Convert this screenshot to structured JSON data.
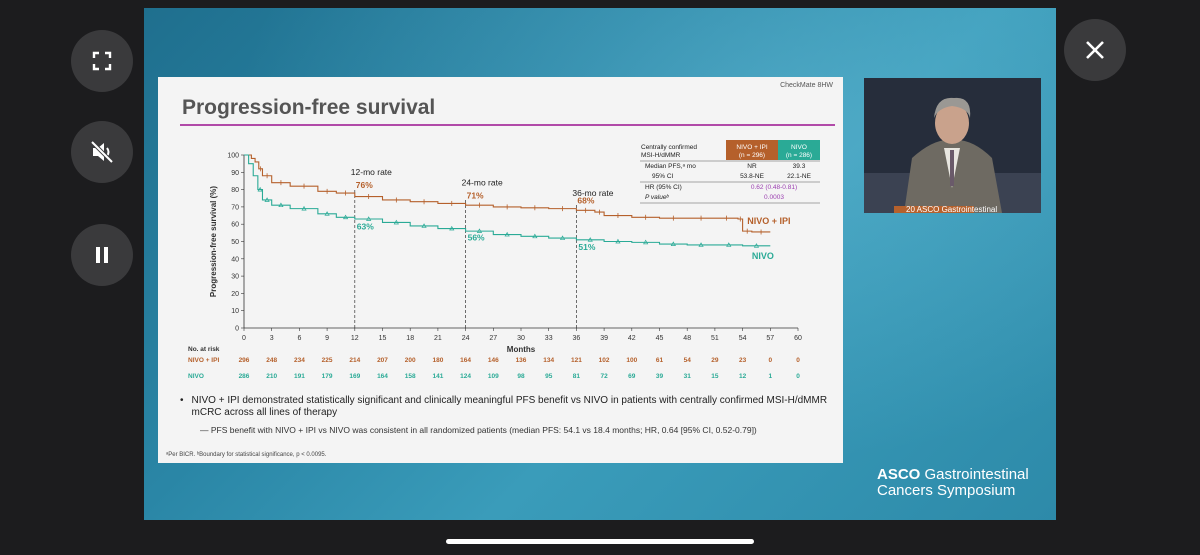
{
  "controls": {
    "fullscreen": "fullscreen-icon",
    "mute": "muted-speaker-icon",
    "pause": "pause-icon",
    "close": "close-icon"
  },
  "slide": {
    "tag": "CheckMate 8HW",
    "title": "Progression-free survival",
    "stats_table": {
      "row_header": "Centrally confirmed MSI-H/dMMR",
      "row_header_line1": "Centrally confirmed",
      "row_header_line2": "MSI-H/dMMR",
      "col1_line1": "NIVO + IPI",
      "col1_line2": "(n = 296)",
      "col2_line1": "NIVO",
      "col2_line2": "(n = 286)",
      "r1_label": "Median PFS,ᵃ mo",
      "r1_c1": "NR",
      "r1_c2": "39.3",
      "r2_label": "95% CI",
      "r2_c1": "53.8-NE",
      "r2_c2": "22.1-NE",
      "r3_label": "HR (95% CI)",
      "r3_value": "0.62 (0.48-0.81)",
      "r4_label": "P valueᵇ",
      "r4_value": "0.0003"
    },
    "bullet1": "NIVO + IPI demonstrated statistically significant and clinically meaningful PFS benefit vs NIVO in patients with centrally confirmed MSI-H/dMMR mCRC across all lines of therapy",
    "bullet2": "— PFS benefit with NIVO + IPI vs NIVO was consistent in all randomized patients (median PFS: 54.1 vs 18.4 months; HR, 0.64 [95% CI, 0.52-0.79])",
    "footnote": "ᵃPer BICR. ᵇBoundary for statistical significance, p < 0.0095."
  },
  "branding": {
    "line1_bold": "ASCO",
    "line1_rest": " Gastrointestinal",
    "line2": "Cancers Symposium",
    "podium_text": "20 ASCO Gastrointestinal"
  },
  "colors": {
    "nivo_ipi": "#b5602b",
    "nivo": "#2aaa96",
    "title_rule": "#b14aa8",
    "hr_text": "#9b3fb0"
  },
  "chart_data": {
    "type": "line",
    "ylabel": "Progression-free survival (%)",
    "xlabel": "Months",
    "xlim": [
      0,
      60
    ],
    "ylim": [
      0,
      100
    ],
    "x_ticks": [
      0,
      3,
      6,
      9,
      12,
      15,
      18,
      21,
      24,
      27,
      30,
      33,
      36,
      39,
      42,
      45,
      48,
      51,
      54,
      57,
      60
    ],
    "y_ticks": [
      0,
      10,
      20,
      30,
      40,
      50,
      60,
      70,
      80,
      90,
      100
    ],
    "landmarks": [
      {
        "x": 12,
        "label": "12-mo rate",
        "nivo_ipi": "76%",
        "nivo": "63%"
      },
      {
        "x": 24,
        "label": "24-mo rate",
        "nivo_ipi": "71%",
        "nivo": "56%"
      },
      {
        "x": 36,
        "label": "36-mo rate",
        "nivo_ipi": "68%",
        "nivo": "51%"
      }
    ],
    "series": [
      {
        "name": "NIVO + IPI",
        "x": [
          0,
          0.8,
          1.2,
          1.6,
          2.0,
          3,
          5,
          8,
          10,
          12,
          15,
          18,
          21,
          24,
          27,
          30,
          33,
          36,
          38,
          39,
          42,
          45,
          48,
          51,
          53.5,
          54,
          55,
          57
        ],
        "y": [
          100,
          98,
          96,
          92,
          88,
          84,
          82,
          79,
          78,
          76,
          74,
          73,
          72,
          71,
          70,
          69.5,
          69,
          68,
          67,
          65,
          64,
          63.5,
          63.5,
          63.5,
          63,
          56,
          55.5,
          55.5
        ]
      },
      {
        "name": "NIVO",
        "x": [
          0,
          0.5,
          1.0,
          1.5,
          2.0,
          3,
          5,
          8,
          10,
          12,
          15,
          18,
          21,
          24,
          27,
          30,
          33,
          36,
          39,
          42,
          45,
          48,
          51,
          54,
          57
        ],
        "y": [
          100,
          95,
          88,
          80,
          74,
          71,
          69,
          66,
          64,
          63,
          61,
          59,
          57.5,
          56,
          54,
          53,
          52,
          51,
          50,
          49.5,
          48.5,
          48,
          48,
          47.5,
          47.5
        ]
      }
    ],
    "risk_table": {
      "header": "No. at risk",
      "rows": [
        {
          "name": "NIVO + IPI",
          "values": [
            296,
            248,
            234,
            225,
            214,
            207,
            200,
            180,
            164,
            146,
            136,
            134,
            121,
            102,
            100,
            61,
            54,
            29,
            23,
            0,
            0
          ]
        },
        {
          "name": "NIVO",
          "values": [
            286,
            210,
            191,
            179,
            169,
            164,
            158,
            141,
            124,
            109,
            98,
            95,
            81,
            72,
            69,
            39,
            31,
            15,
            12,
            1,
            0
          ]
        }
      ]
    }
  }
}
